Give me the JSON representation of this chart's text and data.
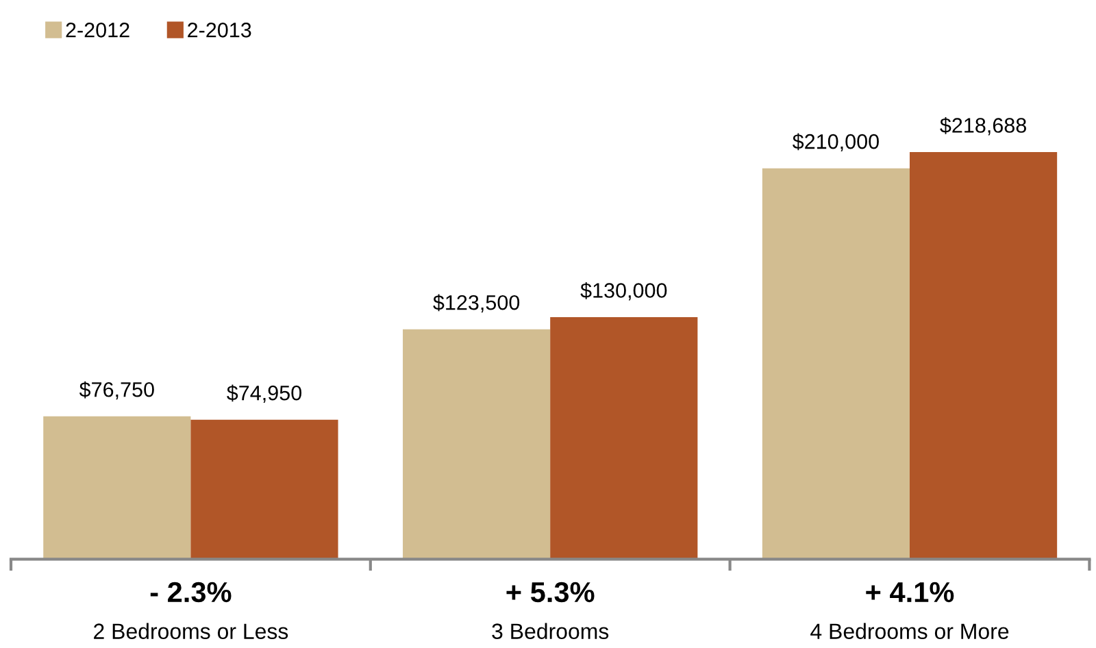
{
  "chart_data": {
    "type": "bar",
    "categories": [
      "2 Bedrooms or Less",
      "3 Bedrooms",
      "4 Bedrooms or More"
    ],
    "series": [
      {
        "name": "2-2012",
        "color": "#d2bd91",
        "values": [
          76750,
          123500,
          210000
        ],
        "value_labels": [
          "$76,750",
          "$123,500",
          "$210,000"
        ]
      },
      {
        "name": "2-2013",
        "color": "#b15628",
        "values": [
          74950,
          130000,
          218688
        ],
        "value_labels": [
          "$74,950",
          "$130,000",
          "$218,688"
        ]
      }
    ],
    "annotations": [
      "- 2.3%",
      "+ 5.3%",
      "+ 4.1%"
    ],
    "grid": false,
    "legend": "top left"
  }
}
